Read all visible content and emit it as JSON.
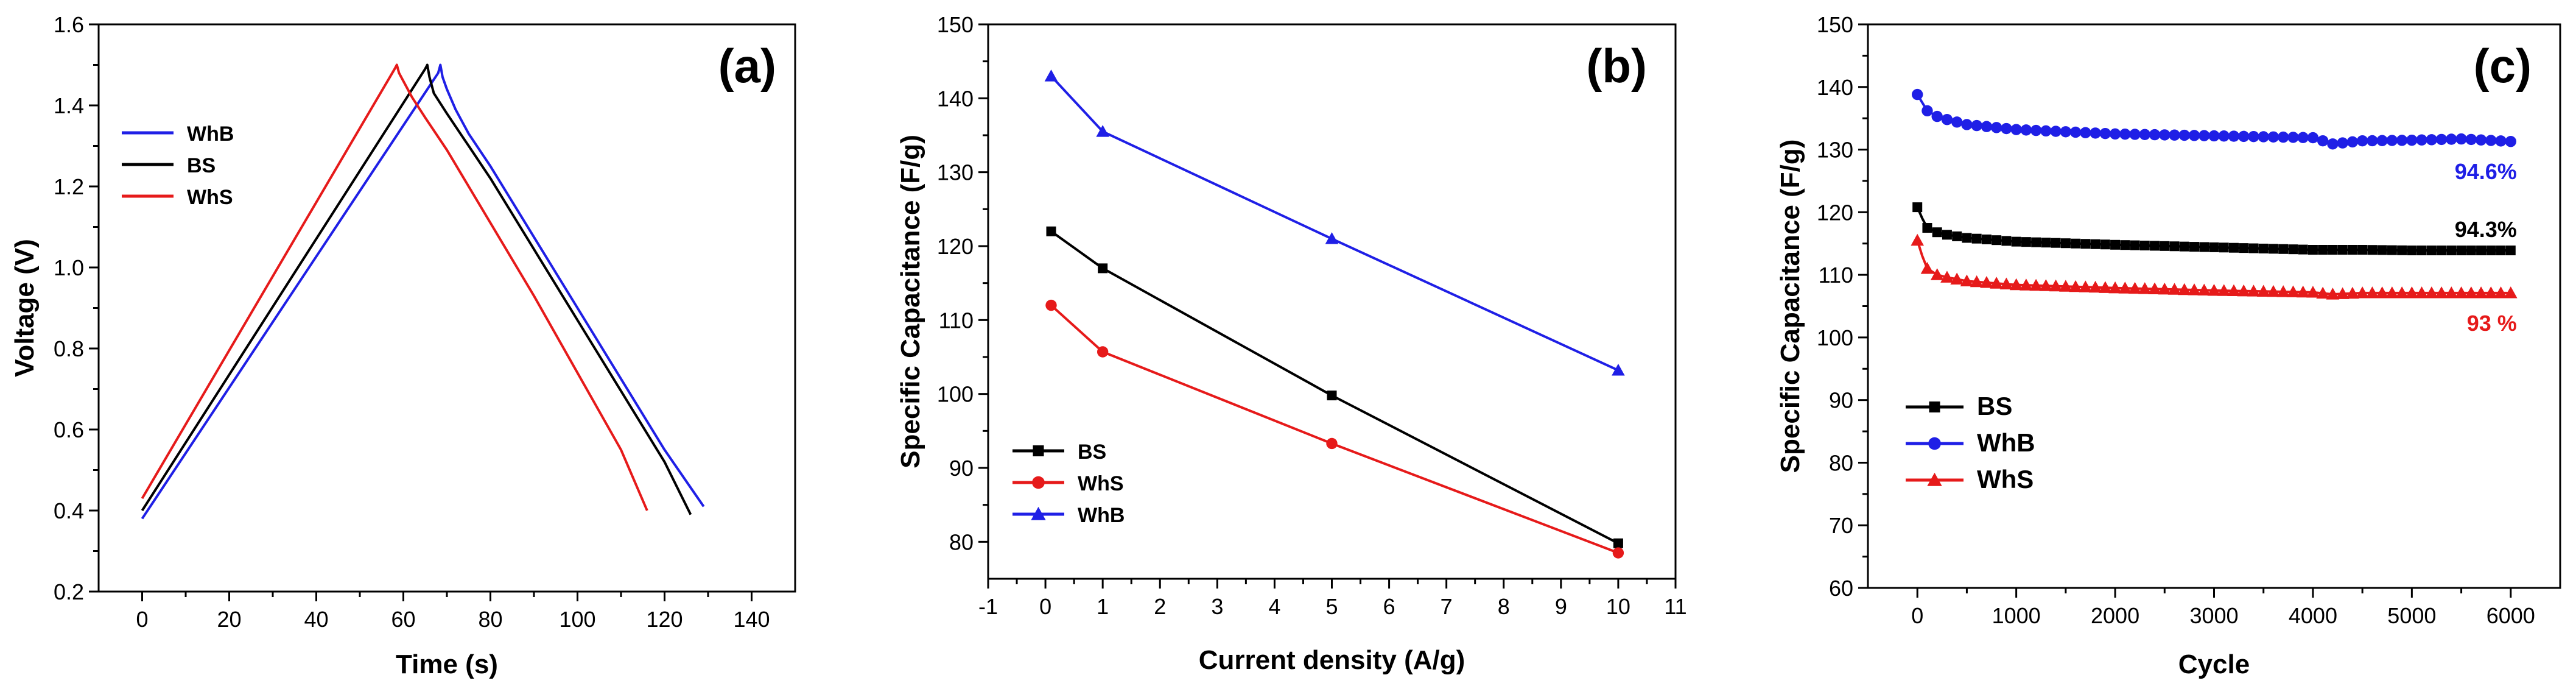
{
  "chart_data": [
    {
      "type": "line",
      "panel_label": "(a)",
      "xlabel": "Time (s)",
      "ylabel": "Voltage (V)",
      "xlim": [
        -10,
        150
      ],
      "ylim": [
        0.2,
        1.6
      ],
      "xticks": [
        0,
        20,
        40,
        60,
        80,
        100,
        120,
        140
      ],
      "yticks": [
        0.2,
        0.4,
        0.6,
        0.8,
        1.0,
        1.2,
        1.4,
        1.6
      ],
      "xtick_labels": [
        "0",
        "20",
        "40",
        "60",
        "80",
        "100",
        "120",
        "140"
      ],
      "ytick_labels": [
        "0.2",
        "0.4",
        "0.6",
        "0.8",
        "1.0",
        "1.2",
        "1.4",
        "1.6"
      ],
      "legend": [
        "WhB",
        "BS",
        "WhS"
      ],
      "series": [
        {
          "name": "WhB",
          "color": "#1f1fe6",
          "x": [
            0,
            68,
            68.5,
            69,
            70,
            72,
            75,
            80,
            100,
            120,
            129
          ],
          "y": [
            0.38,
            1.48,
            1.5,
            1.47,
            1.44,
            1.39,
            1.33,
            1.25,
            0.9,
            0.55,
            0.41
          ]
        },
        {
          "name": "BS",
          "color": "#000000",
          "x": [
            0,
            65,
            65.5,
            66,
            67,
            70,
            75,
            80,
            100,
            120,
            126
          ],
          "y": [
            0.4,
            1.49,
            1.5,
            1.47,
            1.43,
            1.38,
            1.3,
            1.22,
            0.87,
            0.52,
            0.39
          ]
        },
        {
          "name": "WhS",
          "color": "#e61a1a",
          "x": [
            0,
            58,
            58.5,
            59,
            60,
            62,
            65,
            70,
            90,
            110,
            116
          ],
          "y": [
            0.43,
            1.49,
            1.5,
            1.48,
            1.46,
            1.42,
            1.37,
            1.29,
            0.93,
            0.55,
            0.4
          ]
        }
      ]
    },
    {
      "type": "line",
      "panel_label": "(b)",
      "xlabel": "Current density (A/g)",
      "ylabel": "Specific Capacitance (F/g)",
      "xlim": [
        -1,
        11
      ],
      "ylim": [
        75,
        150
      ],
      "xticks": [
        -1,
        0,
        1,
        2,
        3,
        4,
        5,
        6,
        7,
        8,
        9,
        10,
        11
      ],
      "yticks": [
        80,
        90,
        100,
        110,
        120,
        130,
        140,
        150
      ],
      "xtick_labels": [
        "-1",
        "0",
        "1",
        "2",
        "3",
        "4",
        "5",
        "6",
        "7",
        "8",
        "9",
        "10",
        "11"
      ],
      "ytick_labels": [
        "80",
        "90",
        "100",
        "110",
        "120",
        "130",
        "140",
        "150"
      ],
      "legend": [
        "BS",
        "WhS",
        "WhB"
      ],
      "series": [
        {
          "name": "BS",
          "color": "#000000",
          "marker": "square",
          "x": [
            0.1,
            1,
            5,
            10
          ],
          "values": [
            122,
            117,
            99.8,
            79.8
          ]
        },
        {
          "name": "WhS",
          "color": "#e61a1a",
          "marker": "circle",
          "x": [
            0.1,
            1,
            5,
            10
          ],
          "values": [
            112,
            105.7,
            93.3,
            78.5
          ]
        },
        {
          "name": "WhB",
          "color": "#1f1fe6",
          "marker": "triangle",
          "x": [
            0.1,
            1,
            5,
            10
          ],
          "values": [
            143,
            135.5,
            121,
            103.2
          ]
        }
      ]
    },
    {
      "type": "line",
      "panel_label": "(c)",
      "xlabel": "Cycle",
      "ylabel": "Specific Capacitance (F/g)",
      "xlim": [
        -500,
        6500
      ],
      "ylim": [
        60,
        150
      ],
      "xticks": [
        0,
        1000,
        2000,
        3000,
        4000,
        5000,
        6000
      ],
      "yticks": [
        60,
        70,
        80,
        90,
        100,
        110,
        120,
        130,
        140,
        150
      ],
      "xtick_labels": [
        "0",
        "1000",
        "2000",
        "3000",
        "4000",
        "5000",
        "6000"
      ],
      "ytick_labels": [
        "60",
        "70",
        "80",
        "90",
        "100",
        "110",
        "120",
        "130",
        "140",
        "150"
      ],
      "legend": [
        "BS",
        "WhB",
        "WhS"
      ],
      "annotations": [
        {
          "text": "94.6%",
          "color": "#1f1fe6",
          "series": "WhB"
        },
        {
          "text": "94.3%",
          "color": "#000000",
          "series": "BS"
        },
        {
          "text": "93 %",
          "color": "#e61a1a",
          "series": "WhS"
        }
      ],
      "series": [
        {
          "name": "BS",
          "color": "#000000",
          "marker": "square",
          "x": [
            0,
            50,
            100,
            200,
            300,
            500,
            1000,
            2000,
            3000,
            4000,
            4500,
            5000,
            5500,
            6000
          ],
          "values": [
            120.8,
            119,
            117.5,
            116.8,
            116.4,
            115.9,
            115.3,
            114.8,
            114.4,
            114.0,
            114.0,
            113.9,
            113.9,
            113.9
          ]
        },
        {
          "name": "WhB",
          "color": "#1f1fe6",
          "marker": "circle",
          "x": [
            0,
            50,
            100,
            200,
            300,
            500,
            1000,
            2000,
            3000,
            4000,
            4200,
            4500,
            5000,
            5500,
            6000
          ],
          "values": [
            138.8,
            137.5,
            136.2,
            135.3,
            134.8,
            134.0,
            133.2,
            132.5,
            132.2,
            131.9,
            130.9,
            131.4,
            131.5,
            131.7,
            131.3
          ]
        },
        {
          "name": "WhS",
          "color": "#e61a1a",
          "marker": "triangle",
          "x": [
            0,
            50,
            100,
            200,
            300,
            500,
            1000,
            2000,
            3000,
            4000,
            4200,
            4500,
            5000,
            5500,
            6000
          ],
          "values": [
            115.5,
            113.0,
            111.0,
            110.0,
            109.6,
            109.0,
            108.4,
            107.9,
            107.5,
            107.2,
            106.9,
            107.1,
            107.1,
            107.1,
            107.1
          ]
        }
      ]
    }
  ]
}
